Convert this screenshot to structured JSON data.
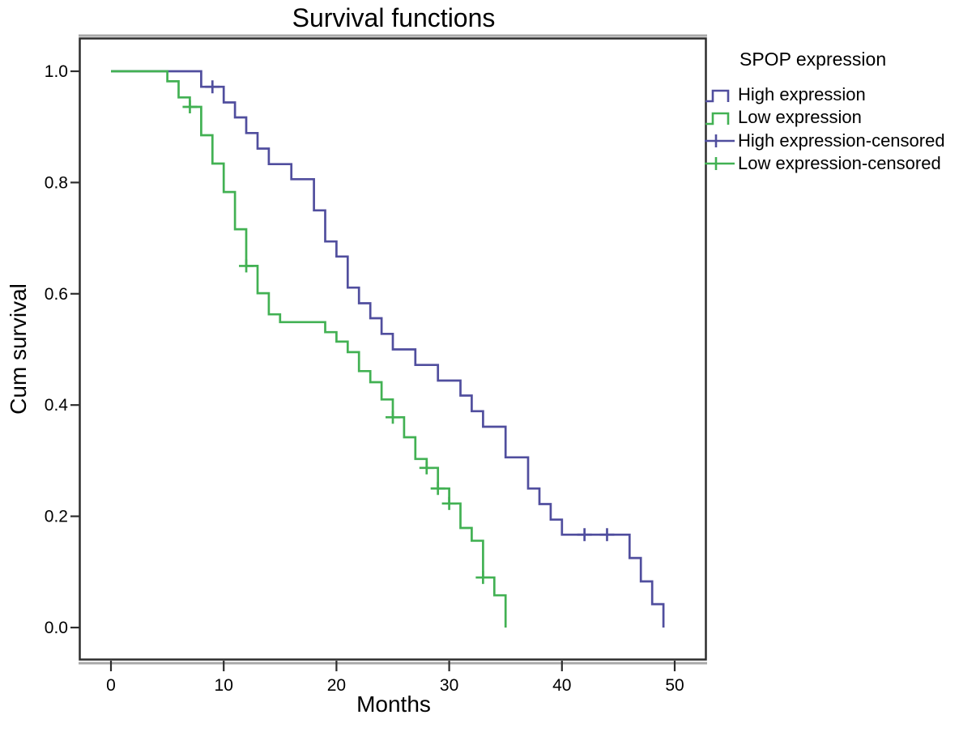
{
  "chart_data": {
    "type": "line",
    "subtype": "kaplan-meier-step",
    "title": "Survival functions",
    "xlabel": "Months",
    "ylabel": "Cum survival",
    "xlim": [
      0,
      50
    ],
    "ylim": [
      0.0,
      1.0
    ],
    "x_ticks": [
      0,
      10,
      20,
      30,
      40,
      50
    ],
    "y_tick_labels": [
      "0.0",
      "0.2",
      "0.4",
      "0.6",
      "0.8",
      "1.0"
    ],
    "grid": false,
    "legend_position": "right",
    "legend_title": "SPOP expression",
    "colors": {
      "high_expression": "#504e9e",
      "low_expression": "#42b153",
      "frame": "#2d2d2d",
      "frame_shadow": "#a8a8a8",
      "text": "#000000"
    },
    "series": [
      {
        "name": "High expression",
        "color_key": "high_expression",
        "start": [
          0,
          1.0
        ],
        "steps": [
          [
            8,
            0.972
          ],
          [
            10,
            0.944
          ],
          [
            11,
            0.917
          ],
          [
            12,
            0.889
          ],
          [
            13,
            0.861
          ],
          [
            14,
            0.833
          ],
          [
            16,
            0.806
          ],
          [
            18,
            0.75
          ],
          [
            19,
            0.694
          ],
          [
            20,
            0.667
          ],
          [
            21,
            0.611
          ],
          [
            22,
            0.583
          ],
          [
            23,
            0.556
          ],
          [
            24,
            0.528
          ],
          [
            25,
            0.5
          ],
          [
            27,
            0.472
          ],
          [
            29,
            0.444
          ],
          [
            31,
            0.417
          ],
          [
            32,
            0.389
          ],
          [
            33,
            0.361
          ],
          [
            35,
            0.306
          ],
          [
            37,
            0.25
          ],
          [
            38,
            0.222
          ],
          [
            39,
            0.194
          ],
          [
            40,
            0.167
          ],
          [
            46,
            0.125
          ],
          [
            47,
            0.083
          ],
          [
            48,
            0.042
          ],
          [
            49,
            0.0
          ]
        ],
        "censored": [
          [
            9,
            0.972
          ],
          [
            42,
            0.167
          ],
          [
            44,
            0.167
          ]
        ]
      },
      {
        "name": "Low expression",
        "color_key": "low_expression",
        "start": [
          0,
          1.0
        ],
        "steps": [
          [
            5,
            0.982
          ],
          [
            6,
            0.953
          ],
          [
            7,
            0.936
          ],
          [
            8,
            0.885
          ],
          [
            9,
            0.834
          ],
          [
            10,
            0.783
          ],
          [
            11,
            0.716
          ],
          [
            12,
            0.65
          ],
          [
            13,
            0.601
          ],
          [
            14,
            0.563
          ],
          [
            15,
            0.549
          ],
          [
            19,
            0.531
          ],
          [
            20,
            0.514
          ],
          [
            21,
            0.495
          ],
          [
            22,
            0.461
          ],
          [
            23,
            0.441
          ],
          [
            24,
            0.41
          ],
          [
            25,
            0.378
          ],
          [
            26,
            0.342
          ],
          [
            27,
            0.303
          ],
          [
            28,
            0.287
          ],
          [
            29,
            0.25
          ],
          [
            30,
            0.223
          ],
          [
            31,
            0.179
          ],
          [
            32,
            0.156
          ],
          [
            33,
            0.09
          ],
          [
            34,
            0.058
          ],
          [
            35,
            0.0
          ]
        ],
        "censored": [
          [
            7,
            0.936
          ],
          [
            12,
            0.65
          ],
          [
            25,
            0.378
          ],
          [
            28,
            0.287
          ],
          [
            29,
            0.25
          ],
          [
            30,
            0.223
          ],
          [
            33,
            0.09
          ]
        ]
      }
    ],
    "legend": [
      {
        "label": "High expression",
        "key": "step",
        "color_key": "high_expression"
      },
      {
        "label": "Low expression",
        "key": "step",
        "color_key": "low_expression"
      },
      {
        "label": "High expression-censored",
        "key": "censor",
        "color_key": "high_expression"
      },
      {
        "label": "Low expression-censored",
        "key": "censor",
        "color_key": "low_expression"
      }
    ]
  }
}
